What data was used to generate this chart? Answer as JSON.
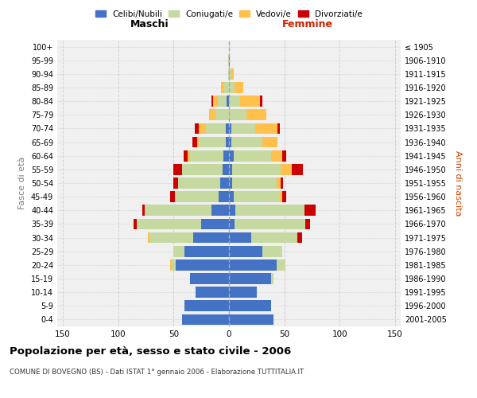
{
  "age_groups": [
    "0-4",
    "5-9",
    "10-14",
    "15-19",
    "20-24",
    "25-29",
    "30-34",
    "35-39",
    "40-44",
    "45-49",
    "50-54",
    "55-59",
    "60-64",
    "65-69",
    "70-74",
    "75-79",
    "80-84",
    "85-89",
    "90-94",
    "95-99",
    "100+"
  ],
  "birth_years": [
    "2001-2005",
    "1996-2000",
    "1991-1995",
    "1986-1990",
    "1981-1985",
    "1976-1980",
    "1971-1975",
    "1966-1970",
    "1961-1965",
    "1956-1960",
    "1951-1955",
    "1946-1950",
    "1941-1945",
    "1936-1940",
    "1931-1935",
    "1926-1930",
    "1921-1925",
    "1916-1920",
    "1911-1915",
    "1906-1910",
    "≤ 1905"
  ],
  "males": {
    "celibe": [
      42,
      40,
      30,
      35,
      48,
      40,
      32,
      25,
      16,
      9,
      8,
      6,
      5,
      3,
      3,
      0,
      2,
      0,
      0,
      0,
      0
    ],
    "coniugato": [
      0,
      0,
      0,
      0,
      4,
      10,
      40,
      58,
      60,
      40,
      38,
      36,
      30,
      24,
      18,
      12,
      8,
      4,
      1,
      1,
      0
    ],
    "vedovo": [
      0,
      0,
      0,
      0,
      1,
      0,
      1,
      0,
      0,
      0,
      0,
      0,
      2,
      2,
      6,
      6,
      4,
      3,
      0,
      0,
      0
    ],
    "divorziato": [
      0,
      0,
      0,
      0,
      0,
      0,
      0,
      3,
      2,
      4,
      4,
      8,
      4,
      4,
      4,
      0,
      2,
      0,
      0,
      0,
      0
    ]
  },
  "females": {
    "nubile": [
      40,
      38,
      25,
      38,
      43,
      30,
      20,
      5,
      6,
      4,
      3,
      3,
      4,
      2,
      2,
      0,
      0,
      0,
      0,
      1,
      0
    ],
    "coniugata": [
      0,
      0,
      0,
      2,
      8,
      18,
      42,
      64,
      62,
      42,
      40,
      44,
      34,
      28,
      22,
      16,
      10,
      5,
      2,
      0,
      0
    ],
    "vedova": [
      0,
      0,
      0,
      0,
      0,
      0,
      0,
      0,
      0,
      2,
      4,
      10,
      10,
      14,
      20,
      18,
      18,
      8,
      2,
      0,
      0
    ],
    "divorziata": [
      0,
      0,
      0,
      0,
      0,
      0,
      4,
      4,
      10,
      4,
      2,
      10,
      4,
      0,
      2,
      0,
      2,
      0,
      0,
      0,
      0
    ]
  },
  "colors": {
    "celibe": "#4472c4",
    "coniugato": "#c5d9a0",
    "vedovo": "#ffc04c",
    "divorziato": "#cc0000"
  },
  "title": "Popolazione per età, sesso e stato civile - 2006",
  "subtitle": "COMUNE DI BOVEGNO (BS) - Dati ISTAT 1° gennaio 2006 - Elaborazione TUTTITALIA.IT",
  "xlabel_left": "Maschi",
  "xlabel_right": "Femmine",
  "ylabel_left": "Fasce di età",
  "ylabel_right": "Anni di nascita",
  "xlim": 155,
  "bg_color": "#ffffff",
  "plot_bg": "#f0f0f0",
  "grid_color": "#cccccc",
  "legend_labels": [
    "Celibi/Nubili",
    "Coniugati/e",
    "Vedovi/e",
    "Divorziati/e"
  ]
}
